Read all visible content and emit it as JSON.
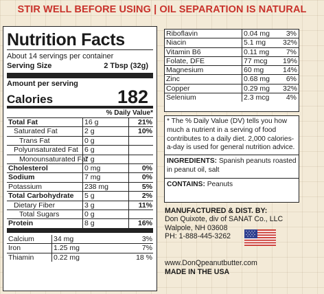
{
  "banner": "STIR WELL BEFORE USING | OIL SEPARATION IS NATURAL",
  "facts": {
    "title": "Nutrition Facts",
    "servings": "About 14 servings per container",
    "serving_size_label": "Serving Size",
    "serving_size_value": "2 Tbsp (32g)",
    "amount_per_serving": "Amount per serving",
    "calories_label": "Calories",
    "calories_value": "182",
    "dv_header": "% Daily Value*",
    "nutrients": [
      {
        "name": "Total Fat",
        "amount": "16 g",
        "unit": "",
        "dv": "21%"
      },
      {
        "name": "Saturated Fat",
        "amount": "2 g",
        "unit": "",
        "dv": "10%"
      },
      {
        "name": "Trans Fat",
        "amount": "0 g",
        "unit": "",
        "dv": ""
      },
      {
        "name": "Polyunsaturated Fat",
        "amount": "6 g",
        "unit": "",
        "dv": ""
      },
      {
        "name": "Monounsaturated Fat",
        "amount": "7 g",
        "unit": "",
        "dv": ""
      },
      {
        "name": "Cholesterol",
        "amount": "0 mg",
        "unit": "",
        "dv": "0%"
      },
      {
        "name": "Sodium",
        "amount": "7 mg",
        "unit": "",
        "dv": "0%"
      },
      {
        "name": "Potassium",
        "amount": "238 mg",
        "unit": "",
        "dv": "5%"
      },
      {
        "name": "Total Carbohydrate",
        "amount": "5 g",
        "unit": "",
        "dv": "2%"
      },
      {
        "name": "Dietary Fiber",
        "amount": "3 g",
        "unit": "",
        "dv": "11%"
      },
      {
        "name": "Total Sugars",
        "amount": "0 g",
        "unit": "",
        "dv": ""
      },
      {
        "name": "Protein",
        "amount": "8 g",
        "unit": "",
        "dv": "16%"
      }
    ],
    "minerals": [
      {
        "name": "Calcium",
        "amount": "34 mg",
        "dv": "3%"
      },
      {
        "name": "Iron",
        "amount": "1.25 mg",
        "dv": "7%"
      },
      {
        "name": "Thiamin",
        "amount": "0.22 mg",
        "dv": "18 %"
      }
    ]
  },
  "vitamins": [
    {
      "name": "Riboflavin",
      "amount": "0.04 mg",
      "dv": "3%"
    },
    {
      "name": "Niacin",
      "amount": "5.1 mg",
      "dv": "32%"
    },
    {
      "name": "Vitamin B6",
      "amount": "0.11 mg",
      "dv": "7%"
    },
    {
      "name": "Folate, DFE",
      "amount": "77 mcg",
      "dv": "19%"
    },
    {
      "name": "Magnesium",
      "amount": "60 mg",
      "dv": "14%"
    },
    {
      "name": "Zinc",
      "amount": "0.68 mg",
      "dv": "6%"
    },
    {
      "name": "Copper",
      "amount": "0.29 mg",
      "dv": "32%"
    },
    {
      "name": "Selenium",
      "amount": "2.3 mcg",
      "dv": "4%"
    }
  ],
  "footnote": "* The % Daily Value (DV) tells you how much a nutrient in a serving of food contributes to a daily diet. 2,000 calories-a-day is used for general nutrition advice.",
  "ingredients_label": "INGREDIENTS:",
  "ingredients_text": "Spanish peanuts roasted in peanut oil, salt",
  "contains_label": "CONTAINS:",
  "contains_text": "Peanuts",
  "manufacturer": {
    "heading": "MANUFACTURED & DIST. BY:",
    "line1": "Don Quixote, div of SANAT Co., LLC",
    "line2": "Walpole, NH 03608",
    "line3": "PH: 1-888-445-3262"
  },
  "website": "www.DonQpeanutbutter.com",
  "made_in": "MADE IN THE USA",
  "colors": {
    "banner": "#c8322b",
    "background": "#f3ead7",
    "flag_red": "#c8322b",
    "flag_blue": "#2f3f8f"
  },
  "flag_icon": "us-flag-icon"
}
